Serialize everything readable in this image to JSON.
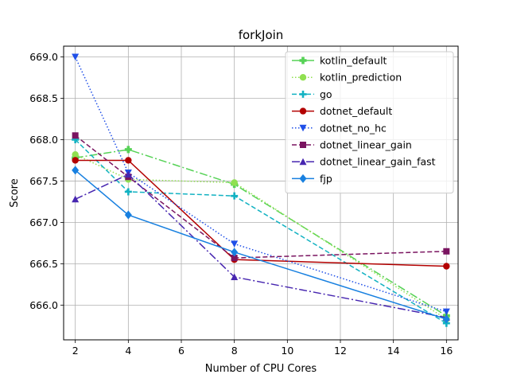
{
  "chart_data": {
    "type": "line",
    "title": "forkJoin",
    "xlabel": "Number of CPU Cores",
    "ylabel": "Score",
    "x": [
      2,
      4,
      8,
      16
    ],
    "xlim": [
      1.56,
      16.44
    ],
    "ylim": [
      665.58,
      669.13
    ],
    "xticks": [
      2,
      4,
      6,
      8,
      10,
      12,
      14,
      16
    ],
    "yticks": [
      666.0,
      666.5,
      667.0,
      667.5,
      668.0,
      668.5,
      669.0
    ],
    "ytick_labels": [
      "666.0",
      "666.5",
      "667.0",
      "667.5",
      "668.0",
      "668.5",
      "669.0"
    ],
    "grid": true,
    "legend_position": "top-right",
    "series": [
      {
        "name": "kotlin_default",
        "values": [
          667.78,
          667.88,
          667.46,
          665.87
        ],
        "color": "#56d256",
        "dash": "10,3,2,3",
        "marker": "plus-filled"
      },
      {
        "name": "kotlin_prediction",
        "values": [
          667.82,
          667.52,
          667.48,
          665.83
        ],
        "color": "#90e050",
        "dash": "1.5,2.5",
        "marker": "circle"
      },
      {
        "name": "go",
        "values": [
          668.0,
          667.37,
          667.32,
          665.78
        ],
        "color": "#12b2c2",
        "dash": "6,3",
        "marker": "plus"
      },
      {
        "name": "dotnet_default",
        "values": [
          667.75,
          667.75,
          666.55,
          666.47
        ],
        "color": "#b30000",
        "dash": "",
        "marker": "circle"
      },
      {
        "name": "dotnet_no_hc",
        "values": [
          669.0,
          667.6,
          666.74,
          665.92
        ],
        "color": "#1f4fe8",
        "dash": "1.5,2.5",
        "marker": "triangle-down"
      },
      {
        "name": "dotnet_linear_gain",
        "values": [
          668.05,
          667.55,
          666.57,
          666.65
        ],
        "color": "#7a1460",
        "dash": "6,3",
        "marker": "square"
      },
      {
        "name": "dotnet_linear_gain_fast",
        "values": [
          667.28,
          667.58,
          666.34,
          665.85
        ],
        "color": "#4726b0",
        "dash": "10,3,2,3",
        "marker": "triangle-up"
      },
      {
        "name": "fjp",
        "values": [
          667.63,
          667.09,
          666.64,
          665.83
        ],
        "color": "#1880e0",
        "dash": "",
        "marker": "diamond"
      }
    ]
  }
}
